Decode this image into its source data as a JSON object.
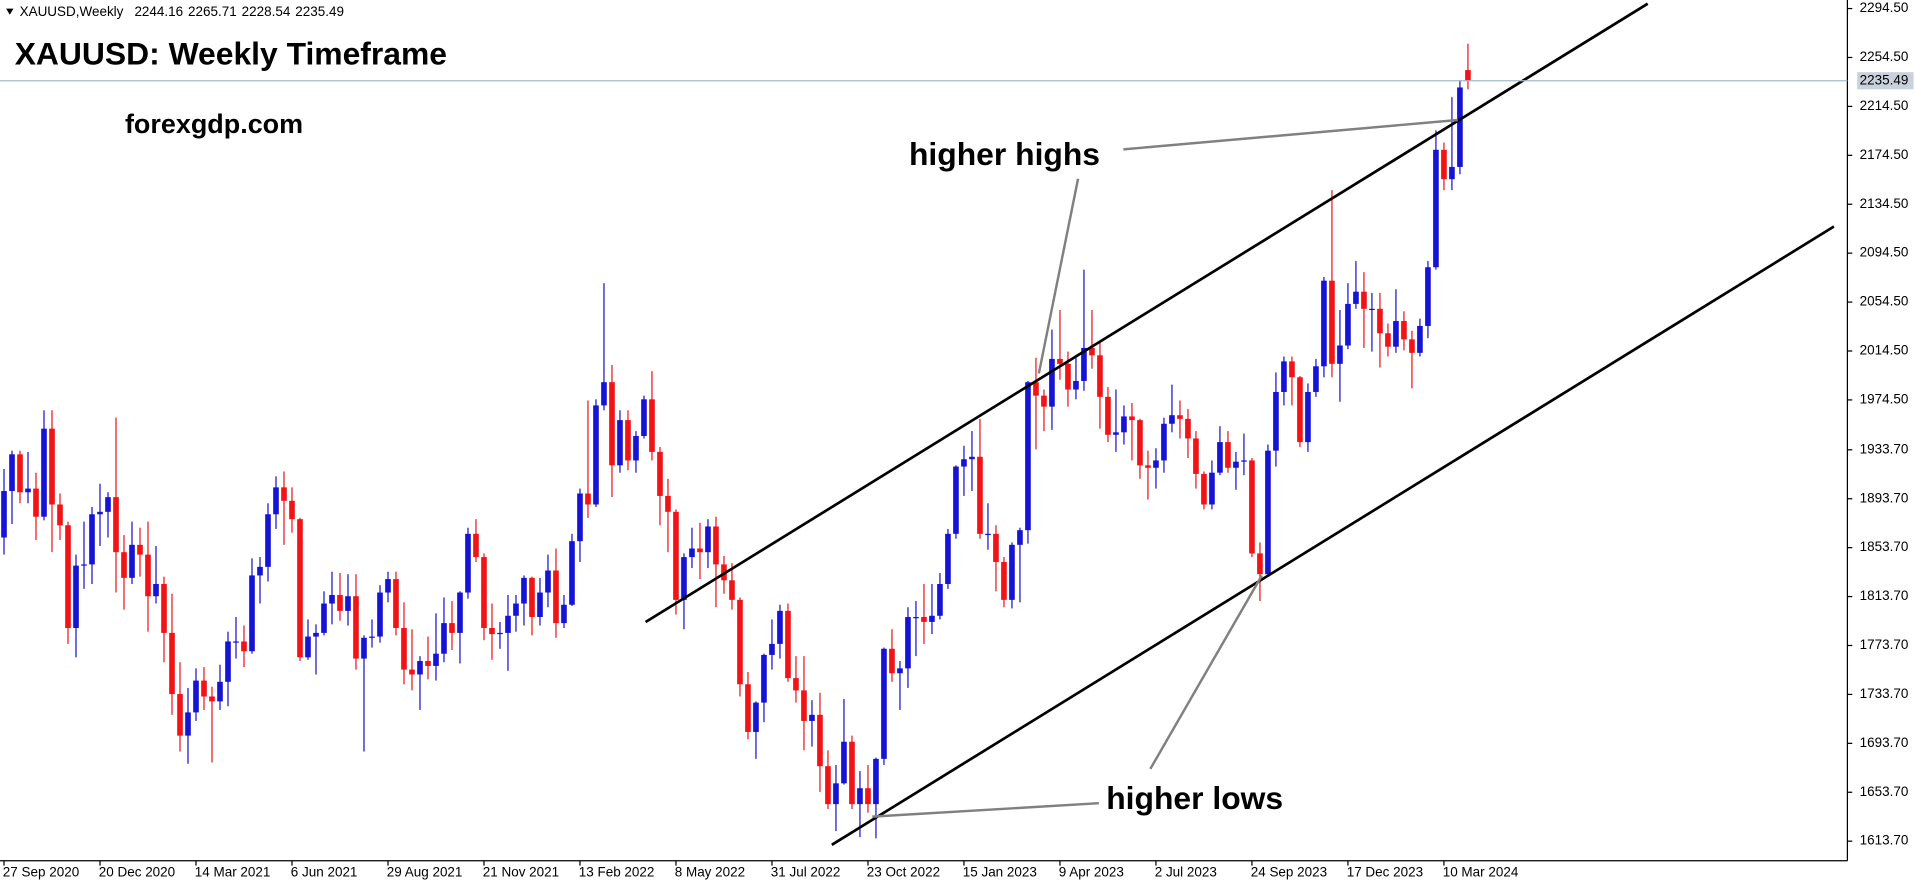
{
  "chart_data": {
    "type": "candlestick",
    "symbol": "XAUUSD,Weekly",
    "title": "XAUUSD: Weekly Timeframe",
    "subtitle": "forexgdp.com",
    "annotations": [
      "higher highs",
      "higher lows"
    ],
    "colors": {
      "up": "#1414d2",
      "down": "#f01414"
    },
    "grid": false,
    "ylim": [
      1597.7,
      2301.5
    ],
    "yticks": [
      {
        "value": 2294.5,
        "label": "2294.50"
      },
      {
        "value": 2254.5,
        "label": "2254.50"
      },
      {
        "value": 2214.5,
        "label": "2214.50"
      },
      {
        "value": 2174.5,
        "label": "2174.50"
      },
      {
        "value": 2134.5,
        "label": "2134.50"
      },
      {
        "value": 2094.5,
        "label": "2094.50"
      },
      {
        "value": 2054.5,
        "label": "2054.50"
      },
      {
        "value": 2014.5,
        "label": "2014.50"
      },
      {
        "value": 1974.5,
        "label": "1974.50"
      },
      {
        "value": 1933.7,
        "label": "1933.70"
      },
      {
        "value": 1893.7,
        "label": "1893.70"
      },
      {
        "value": 1853.7,
        "label": "1853.70"
      },
      {
        "value": 1813.7,
        "label": "1813.70"
      },
      {
        "value": 1773.7,
        "label": "1773.70"
      },
      {
        "value": 1733.7,
        "label": "1733.70"
      },
      {
        "value": 1693.7,
        "label": "1693.70"
      },
      {
        "value": 1653.7,
        "label": "1653.70"
      },
      {
        "value": 1613.7,
        "label": "1613.70"
      }
    ],
    "categories": [
      "27 Sep 2020",
      null,
      null,
      null,
      null,
      null,
      null,
      null,
      null,
      null,
      null,
      null,
      "20 Dec 2020",
      null,
      null,
      null,
      null,
      null,
      null,
      null,
      null,
      null,
      null,
      null,
      "14 Mar 2021",
      null,
      null,
      null,
      null,
      null,
      null,
      null,
      null,
      null,
      null,
      null,
      "6 Jun 2021",
      null,
      null,
      null,
      null,
      null,
      null,
      null,
      null,
      null,
      null,
      null,
      "29 Aug 2021",
      null,
      null,
      null,
      null,
      null,
      null,
      null,
      null,
      null,
      null,
      null,
      "21 Nov 2021",
      null,
      null,
      null,
      null,
      null,
      null,
      null,
      null,
      null,
      null,
      null,
      "13 Feb 2022",
      null,
      null,
      null,
      null,
      null,
      null,
      null,
      null,
      null,
      null,
      null,
      "8 May 2022",
      null,
      null,
      null,
      null,
      null,
      null,
      null,
      null,
      null,
      null,
      null,
      "31 Jul 2022",
      null,
      null,
      null,
      null,
      null,
      null,
      null,
      null,
      null,
      null,
      null,
      "23 Oct 2022",
      null,
      null,
      null,
      null,
      null,
      null,
      null,
      null,
      null,
      null,
      null,
      "15 Jan 2023",
      null,
      null,
      null,
      null,
      null,
      null,
      null,
      null,
      null,
      null,
      null,
      "9 Apr 2023",
      null,
      null,
      null,
      null,
      null,
      null,
      null,
      null,
      null,
      null,
      null,
      "2 Jul 2023",
      null,
      null,
      null,
      null,
      null,
      null,
      null,
      null,
      null,
      null,
      null,
      "24 Sep 2023",
      null,
      null,
      null,
      null,
      null,
      null,
      null,
      null,
      null,
      null,
      null,
      "17 Dec 2023",
      null,
      null,
      null,
      null,
      null,
      null,
      null,
      null,
      null,
      null,
      null,
      "10 Mar 2024",
      null,
      null,
      null
    ],
    "open": [
      1862,
      1900,
      1930,
      1899,
      1902,
      1879,
      1951,
      1889,
      1872,
      1788,
      1839,
      1840,
      1881,
      1883,
      1895,
      1850,
      1829,
      1856,
      1848,
      1814,
      1824,
      1784,
      1734,
      1700,
      1719,
      1745,
      1732,
      1728,
      1744,
      1777,
      1777,
      1769,
      1831,
      1838,
      1881,
      1903,
      1892,
      1877,
      1764,
      1781,
      1784,
      1808,
      1815,
      1802,
      1814,
      1763,
      1780,
      1781,
      1817,
      1828,
      1788,
      1754,
      1750,
      1761,
      1757,
      1767,
      1792,
      1784,
      1817,
      1865,
      1846,
      1788,
      1783,
      1784,
      1798,
      1808,
      1829,
      1797,
      1817,
      1835,
      1792,
      1807,
      1859,
      1898,
      1889,
      1970,
      1989,
      1921,
      1958,
      1925,
      1945,
      1975,
      1932,
      1896,
      1883,
      1811,
      1846,
      1853,
      1850,
      1871,
      1840,
      1827,
      1811,
      1742,
      1703,
      1727,
      1766,
      1775,
      1802,
      1747,
      1737,
      1712,
      1717,
      1675,
      1644,
      1661,
      1695,
      1644,
      1657,
      1644,
      1681,
      1771,
      1751,
      1755,
      1797,
      1797,
      1793,
      1798,
      1824,
      1865,
      1920,
      1926,
      1928,
      1865,
      1865,
      1842,
      1811,
      1856,
      1868,
      1989,
      1978,
      1969,
      2008,
      2004,
      1983,
      1990,
      2017,
      2011,
      1977,
      1946,
      1948,
      1961,
      1958,
      1921,
      1919,
      1925,
      1955,
      1962,
      1959,
      1943,
      1914,
      1889,
      1915,
      1940,
      1919,
      1924,
      1925,
      1849,
      1832,
      1933,
      1981,
      2006,
      1993,
      1940,
      1981,
      2002,
      2072,
      2004,
      2019,
      2053,
      2063,
      2049,
      2049,
      2029,
      2018,
      2039,
      2024,
      2013,
      2035,
      2083,
      2179,
      2155,
      2165,
      2244.16
    ],
    "high": [
      1918,
      1933,
      1933,
      1932,
      1915,
      1966,
      1966,
      1898,
      1875,
      1848,
      1875,
      1887,
      1906,
      1899,
      1960,
      1864,
      1875,
      1870,
      1875,
      1855,
      1830,
      1816,
      1760,
      1739,
      1755,
      1756,
      1740,
      1758,
      1785,
      1797,
      1790,
      1845,
      1846,
      1890,
      1912,
      1916,
      1903,
      1878,
      1795,
      1791,
      1818,
      1834,
      1833,
      1832,
      1832,
      1782,
      1795,
      1823,
      1834,
      1834,
      1809,
      1787,
      1765,
      1781,
      1800,
      1813,
      1810,
      1818,
      1870,
      1877,
      1849,
      1808,
      1793,
      1815,
      1815,
      1831,
      1830,
      1829,
      1848,
      1853,
      1815,
      1865,
      1902,
      1974,
      1975,
      2070,
      2003,
      1966,
      1966,
      1949,
      1978,
      1998,
      1936,
      1910,
      1885,
      1849,
      1870,
      1874,
      1877,
      1879,
      1847,
      1841,
      1813,
      1752,
      1728,
      1767,
      1795,
      1807,
      1808,
      1765,
      1765,
      1729,
      1735,
      1688,
      1676,
      1730,
      1700,
      1671,
      1676,
      1682,
      1772,
      1787,
      1761,
      1805,
      1810,
      1824,
      1824,
      1833,
      1869,
      1921,
      1937,
      1949,
      1959,
      1890,
      1872,
      1846,
      1858,
      1870,
      1990,
      2009,
      1983,
      2032,
      2048,
      2014,
      2009,
      2081,
      2048,
      2022,
      1985,
      1983,
      1970,
      1972,
      1959,
      1933,
      1935,
      1960,
      1987,
      1974,
      1967,
      1949,
      1916,
      1925,
      1953,
      1949,
      1932,
      1947,
      1927,
      1858,
      1938,
      1997,
      2010,
      2010,
      1994,
      1988,
      2008,
      2075,
      2146,
      2048,
      2070,
      2088,
      2079,
      2062,
      2062,
      2037,
      2065,
      2047,
      2031,
      2041,
      2088,
      2195,
      2185,
      2222,
      2236,
      2265.71
    ],
    "low": [
      1848,
      1873,
      1890,
      1890,
      1860,
      1876,
      1850,
      1860,
      1775,
      1764,
      1820,
      1824,
      1855,
      1862,
      1817,
      1803,
      1824,
      1830,
      1785,
      1808,
      1760,
      1717,
      1687,
      1677,
      1712,
      1721,
      1678,
      1721,
      1724,
      1763,
      1756,
      1767,
      1808,
      1826,
      1869,
      1856,
      1866,
      1761,
      1762,
      1750,
      1782,
      1791,
      1794,
      1790,
      1754,
      1687,
      1772,
      1776,
      1809,
      1782,
      1742,
      1737,
      1721,
      1746,
      1745,
      1760,
      1770,
      1759,
      1812,
      1842,
      1778,
      1762,
      1771,
      1753,
      1785,
      1790,
      1782,
      1790,
      1805,
      1780,
      1788,
      1806,
      1842,
      1878,
      1887,
      1966,
      1895,
      1915,
      1917,
      1915,
      1943,
      1925,
      1872,
      1850,
      1799,
      1787,
      1837,
      1828,
      1837,
      1805,
      1816,
      1803,
      1732,
      1697,
      1681,
      1711,
      1754,
      1763,
      1744,
      1727,
      1688,
      1691,
      1654,
      1640,
      1622,
      1660,
      1640,
      1617,
      1637,
      1616,
      1676,
      1744,
      1721,
      1739,
      1765,
      1775,
      1783,
      1795,
      1820,
      1861,
      1896,
      1900,
      1861,
      1852,
      1818,
      1805,
      1804,
      1809,
      1857,
      1934,
      1949,
      1950,
      1991,
      1969,
      1975,
      1982,
      2000,
      1951,
      1940,
      1932,
      1938,
      1925,
      1910,
      1893,
      1902,
      1915,
      1948,
      1943,
      1927,
      1902,
      1885,
      1885,
      1913,
      1915,
      1901,
      1913,
      1846,
      1810,
      1830,
      1920,
      1970,
      1970,
      1936,
      1932,
      1977,
      1993,
      1993,
      1973,
      2016,
      2049,
      2017,
      2014,
      2001,
      2010,
      2013,
      2015,
      1984,
      2010,
      2025,
      2081,
      2146,
      2146,
      2159,
      2228.54
    ],
    "close": [
      1900,
      1930,
      1899,
      1902,
      1879,
      1951,
      1889,
      1872,
      1788,
      1839,
      1840,
      1881,
      1883,
      1895,
      1850,
      1829,
      1856,
      1848,
      1814,
      1824,
      1784,
      1734,
      1700,
      1719,
      1745,
      1732,
      1728,
      1744,
      1777,
      1777,
      1769,
      1831,
      1838,
      1881,
      1903,
      1892,
      1877,
      1764,
      1781,
      1784,
      1808,
      1815,
      1802,
      1814,
      1763,
      1780,
      1781,
      1817,
      1828,
      1788,
      1754,
      1750,
      1761,
      1757,
      1767,
      1792,
      1784,
      1817,
      1865,
      1846,
      1788,
      1783,
      1784,
      1798,
      1808,
      1829,
      1797,
      1817,
      1835,
      1792,
      1807,
      1859,
      1898,
      1889,
      1970,
      1989,
      1921,
      1958,
      1925,
      1945,
      1975,
      1932,
      1896,
      1883,
      1811,
      1846,
      1853,
      1850,
      1871,
      1840,
      1827,
      1811,
      1742,
      1703,
      1727,
      1766,
      1775,
      1802,
      1747,
      1737,
      1712,
      1717,
      1675,
      1644,
      1661,
      1695,
      1644,
      1657,
      1644,
      1681,
      1771,
      1751,
      1755,
      1797,
      1797,
      1793,
      1798,
      1824,
      1865,
      1920,
      1926,
      1928,
      1865,
      1865,
      1842,
      1811,
      1856,
      1868,
      1989,
      1978,
      1969,
      2008,
      2004,
      1983,
      1990,
      2017,
      2011,
      1977,
      1946,
      1948,
      1961,
      1958,
      1921,
      1919,
      1925,
      1955,
      1962,
      1959,
      1943,
      1914,
      1889,
      1915,
      1940,
      1919,
      1924,
      1925,
      1849,
      1832,
      1933,
      1981,
      2006,
      1993,
      1940,
      1981,
      2002,
      2072,
      2004,
      2019,
      2053,
      2063,
      2049,
      2049,
      2029,
      2018,
      2039,
      2024,
      2013,
      2035,
      2083,
      2179,
      2155,
      2165,
      2230,
      2235.49
    ]
  }
}
